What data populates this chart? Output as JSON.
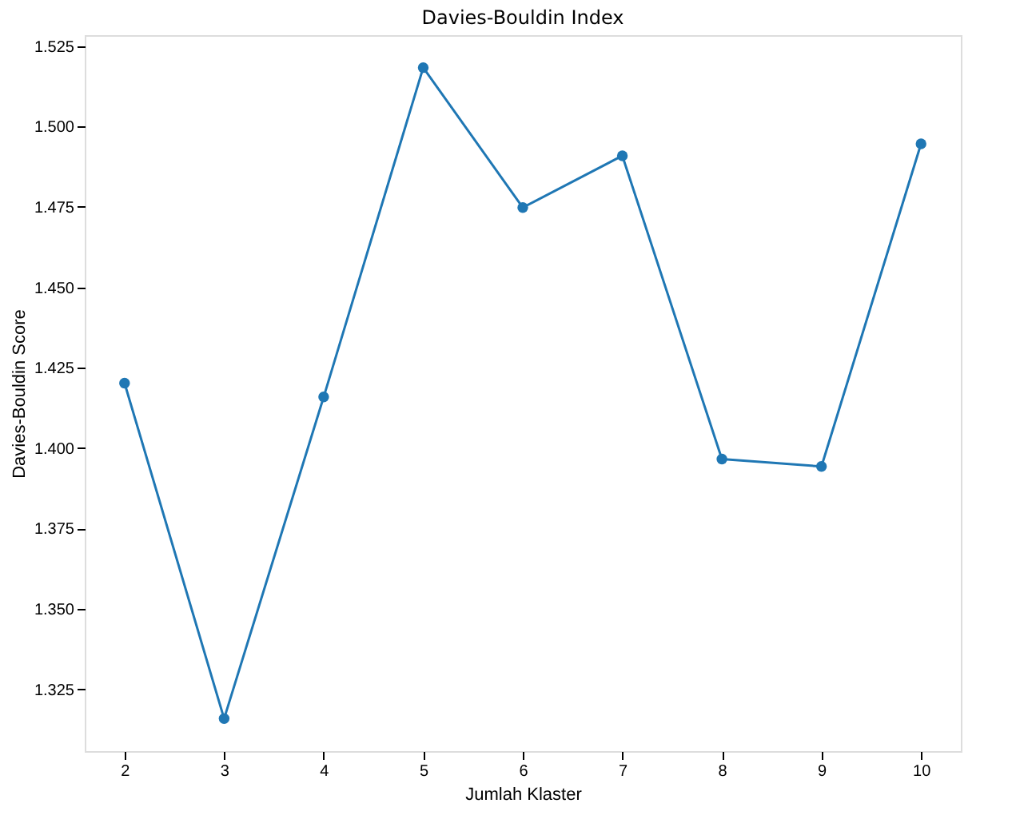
{
  "chart_data": {
    "type": "line",
    "title": "Davies-Bouldin Index",
    "xlabel": "Jumlah Klaster",
    "ylabel": "Davies-Bouldin Score",
    "x": [
      2,
      3,
      4,
      5,
      6,
      7,
      8,
      9,
      10
    ],
    "series": [
      {
        "color": "#1f77b4",
        "values": [
          1.4202,
          1.3159,
          1.4159,
          1.5183,
          1.4748,
          1.4909,
          1.3966,
          1.3943,
          1.4946
        ]
      }
    ],
    "xlim": [
      1.6,
      10.4
    ],
    "xticks": [
      2,
      3,
      4,
      5,
      6,
      7,
      8,
      9,
      10
    ],
    "ylim": [
      1.3058,
      1.5284
    ],
    "yticks": [
      {
        "value": 1.325,
        "label": "1.325"
      },
      {
        "value": 1.35,
        "label": "1.350"
      },
      {
        "value": 1.375,
        "label": "1.375"
      },
      {
        "value": 1.4,
        "label": "1.400"
      },
      {
        "value": 1.425,
        "label": "1.425"
      },
      {
        "value": 1.45,
        "label": "1.450"
      },
      {
        "value": 1.475,
        "label": "1.475"
      },
      {
        "value": 1.5,
        "label": "1.500"
      },
      {
        "value": 1.525,
        "label": "1.525"
      }
    ],
    "grid": false,
    "legend": false,
    "marker": "circle",
    "line_style": "solid"
  }
}
